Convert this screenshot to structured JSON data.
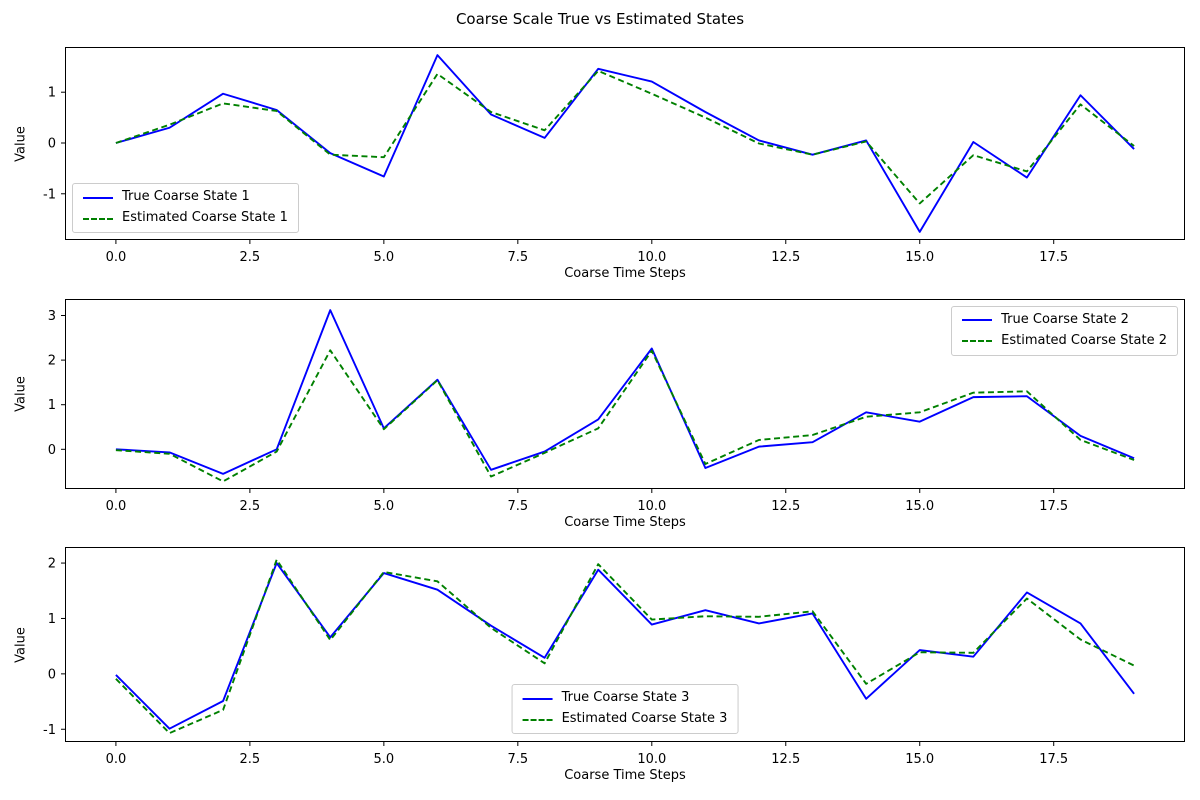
{
  "title": "Coarse Scale True vs Estimated States",
  "colors": {
    "true_line": "#0000ff",
    "estimated_line": "#008000",
    "axis": "#000000",
    "legend_border": "#cccccc",
    "background": "#ffffff"
  },
  "chart_data": [
    {
      "type": "line",
      "xlabel": "Coarse Time Steps",
      "ylabel": "Value",
      "grid": false,
      "legend_loc": "lower left",
      "x": [
        0,
        1,
        2,
        3,
        4,
        5,
        6,
        7,
        8,
        9,
        10,
        11,
        12,
        13,
        14,
        15,
        16,
        17,
        18,
        19
      ],
      "xlim": [
        -0.95,
        19.95
      ],
      "ylim": [
        -1.91,
        1.89
      ],
      "xticks": [
        0,
        2.5,
        5,
        7.5,
        10,
        12.5,
        15,
        17.5
      ],
      "xtick_labels": [
        "0.0",
        "2.5",
        "5.0",
        "7.5",
        "10.0",
        "12.5",
        "15.0",
        "17.5"
      ],
      "yticks": [
        -1,
        0,
        1
      ],
      "ytick_labels": [
        "-1",
        "0",
        "1"
      ],
      "series": [
        {
          "name": "True Coarse State 1",
          "color": "#0000ff",
          "style": "solid",
          "values": [
            0.0,
            0.3,
            0.97,
            0.65,
            -0.2,
            -0.66,
            1.73,
            0.56,
            0.1,
            1.46,
            1.21,
            0.61,
            0.05,
            -0.23,
            0.05,
            -1.75,
            0.02,
            -0.68,
            0.94,
            -0.12
          ]
        },
        {
          "name": "Estimated Coarse State 1",
          "color": "#008000",
          "style": "dashed",
          "values": [
            0.0,
            0.36,
            0.78,
            0.63,
            -0.23,
            -0.28,
            1.36,
            0.61,
            0.25,
            1.42,
            0.97,
            0.5,
            -0.01,
            -0.23,
            0.03,
            -1.19,
            -0.24,
            -0.56,
            0.76,
            -0.06
          ]
        }
      ]
    },
    {
      "type": "line",
      "xlabel": "Coarse Time Steps",
      "ylabel": "Value",
      "grid": false,
      "legend_loc": "upper right",
      "x": [
        0,
        1,
        2,
        3,
        4,
        5,
        6,
        7,
        8,
        9,
        10,
        11,
        12,
        13,
        14,
        15,
        16,
        17,
        18,
        19
      ],
      "xlim": [
        -0.95,
        19.95
      ],
      "ylim": [
        -0.89,
        3.37
      ],
      "xticks": [
        0,
        2.5,
        5,
        7.5,
        10,
        12.5,
        15,
        17.5
      ],
      "xtick_labels": [
        "0.0",
        "2.5",
        "5.0",
        "7.5",
        "10.0",
        "12.5",
        "15.0",
        "17.5"
      ],
      "yticks": [
        0,
        1,
        2,
        3
      ],
      "ytick_labels": [
        "0",
        "1",
        "2",
        "3"
      ],
      "series": [
        {
          "name": "True Coarse State 2",
          "color": "#0000ff",
          "style": "solid",
          "values": [
            0.0,
            -0.07,
            -0.55,
            0.0,
            3.12,
            0.47,
            1.56,
            -0.46,
            -0.05,
            0.67,
            2.26,
            -0.42,
            0.06,
            0.16,
            0.83,
            0.62,
            1.17,
            1.19,
            0.3,
            -0.2
          ]
        },
        {
          "name": "Estimated Coarse State 2",
          "color": "#008000",
          "style": "dashed",
          "values": [
            -0.02,
            -0.1,
            -0.72,
            -0.05,
            2.22,
            0.45,
            1.55,
            -0.61,
            -0.08,
            0.47,
            2.21,
            -0.33,
            0.21,
            0.32,
            0.73,
            0.83,
            1.27,
            1.3,
            0.21,
            -0.24
          ]
        }
      ]
    },
    {
      "type": "line",
      "xlabel": "Coarse Time Steps",
      "ylabel": "Value",
      "grid": false,
      "legend_loc": "lower center",
      "x": [
        0,
        1,
        2,
        3,
        4,
        5,
        6,
        7,
        8,
        9,
        10,
        11,
        12,
        13,
        14,
        15,
        16,
        17,
        18,
        19
      ],
      "xlim": [
        -0.95,
        19.95
      ],
      "ylim": [
        -1.23,
        2.29
      ],
      "xticks": [
        0,
        2.5,
        5,
        7.5,
        10,
        12.5,
        15,
        17.5
      ],
      "xtick_labels": [
        "0.0",
        "2.5",
        "5.0",
        "7.5",
        "10.0",
        "12.5",
        "15.0",
        "17.5"
      ],
      "yticks": [
        -1,
        0,
        1,
        2
      ],
      "ytick_labels": [
        "-1",
        "0",
        "1",
        "2"
      ],
      "series": [
        {
          "name": "True Coarse State 3",
          "color": "#0000ff",
          "style": "solid",
          "values": [
            -0.02,
            -0.99,
            -0.49,
            2.0,
            0.66,
            1.82,
            1.52,
            0.87,
            0.29,
            1.88,
            0.89,
            1.15,
            0.91,
            1.09,
            -0.45,
            0.43,
            0.31,
            1.47,
            0.91,
            -0.36
          ]
        },
        {
          "name": "Estimated Coarse State 3",
          "color": "#008000",
          "style": "dashed",
          "values": [
            -0.09,
            -1.07,
            -0.65,
            2.06,
            0.61,
            1.84,
            1.67,
            0.83,
            0.19,
            1.98,
            0.98,
            1.04,
            1.03,
            1.13,
            -0.18,
            0.39,
            0.38,
            1.36,
            0.62,
            0.15
          ]
        }
      ]
    }
  ]
}
